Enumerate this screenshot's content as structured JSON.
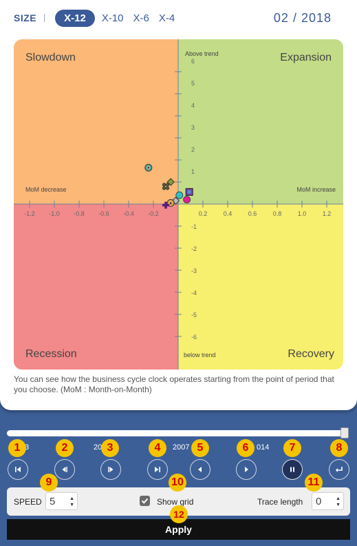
{
  "size_bar": {
    "label": "SIZE",
    "options": [
      "X-12",
      "X-10",
      "X-6",
      "X-4"
    ],
    "active": "X-12"
  },
  "date": "02 / 2018",
  "chart_data": {
    "type": "scatter",
    "quadrants": {
      "top_left": "Slowdown",
      "top_right": "Expansion",
      "bottom_left": "Recession",
      "bottom_right": "Recovery"
    },
    "axis_labels": {
      "top": "Above trend",
      "bottom": "below trend",
      "left": "MoM decrease",
      "right": "MoM increase"
    },
    "x_ticks": [
      "-1.2",
      "-1.0",
      "-0.8",
      "-0.6",
      "-0.4",
      "-0.2",
      "0.2",
      "0.4",
      "0.6",
      "0.8",
      "1.0",
      "1.2"
    ],
    "y_ticks_pos": [
      "6",
      "5",
      "4",
      "3",
      "2",
      "1"
    ],
    "y_ticks_neg": [
      "-1",
      "-2",
      "-3",
      "-4",
      "-5",
      "-6"
    ],
    "xlim": [
      -1.3,
      1.3
    ],
    "ylim": [
      -7,
      7
    ],
    "colors": {
      "slowdown": "#fcb877",
      "expansion": "#c3dc87",
      "recession": "#f2898a",
      "recovery": "#f7ef6e"
    },
    "points": [
      {
        "shape": "target",
        "color": "#3aa6a0",
        "x": -0.24,
        "y": 1.65
      },
      {
        "shape": "diamond",
        "color": "#8b9a3a",
        "x": -0.06,
        "y": 1.0
      },
      {
        "shape": "cluster",
        "color": "#5a5a3a",
        "x": -0.1,
        "y": 0.8
      },
      {
        "shape": "square",
        "color": "#7a3fb0",
        "x": 0.09,
        "y": 0.55
      },
      {
        "shape": "circle",
        "color": "#2fc0c8",
        "x": 0.01,
        "y": 0.4
      },
      {
        "shape": "diamond",
        "color": "#bbbbbb",
        "x": -0.02,
        "y": 0.15
      },
      {
        "shape": "target",
        "color": "#d9a23a",
        "x": -0.06,
        "y": 0.05
      },
      {
        "shape": "circle",
        "color": "#e0209a",
        "x": 0.07,
        "y": 0.2
      },
      {
        "shape": "cross",
        "color": "#5a1e7a",
        "x": -0.1,
        "y": -0.05
      }
    ]
  },
  "description": "You can see how the business cycle clock operates starting from the point of period that you choose. (MoM : Month-on-Month)",
  "timeline": {
    "labels": [
      "3",
      "20",
      "2007",
      "014"
    ],
    "position": 1.0
  },
  "badges": [
    "1",
    "2",
    "3",
    "4",
    "5",
    "6",
    "7",
    "8",
    "9",
    "10",
    "11",
    "12"
  ],
  "options": {
    "speed_label": "SPEED",
    "speed_value": "5",
    "show_grid_label": "Show grid",
    "show_grid_checked": true,
    "trace_label": "Trace length",
    "trace_value": "0"
  },
  "apply_label": "Apply"
}
